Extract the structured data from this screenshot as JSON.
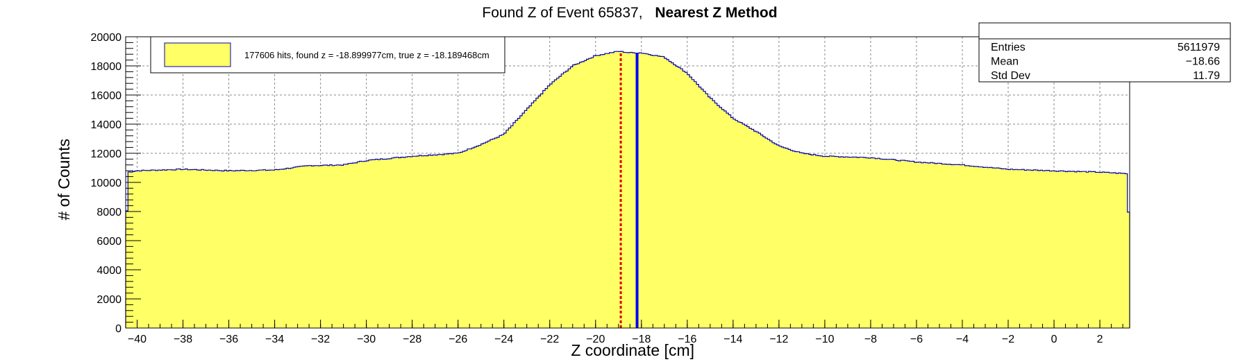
{
  "chart_data": {
    "type": "histogram",
    "title_normal": "Found Z of Event 65837,",
    "title_bold": "Nearest Z Method",
    "xlabel": "Z coordinate [cm]",
    "ylabel": "# of Counts",
    "xlim": [
      -40.5,
      3.3
    ],
    "ylim": [
      0,
      20000
    ],
    "xticks": [
      -40,
      -38,
      -36,
      -34,
      -32,
      -30,
      -28,
      -26,
      -24,
      -22,
      -20,
      -18,
      -16,
      -14,
      -12,
      -10,
      -8,
      -6,
      -4,
      -2,
      0,
      2
    ],
    "yticks": [
      0,
      2000,
      4000,
      6000,
      8000,
      10000,
      12000,
      14000,
      16000,
      18000,
      20000
    ],
    "grid": true,
    "fill_color": "#ffff66",
    "line_color": "#0000aa",
    "histogram_profile": [
      [
        -40.5,
        5400
      ],
      [
        -40.4,
        10700
      ],
      [
        -40.0,
        10800
      ],
      [
        -38.0,
        10900
      ],
      [
        -36.0,
        10800
      ],
      [
        -34.0,
        10850
      ],
      [
        -32.5,
        11150
      ],
      [
        -31.0,
        11200
      ],
      [
        -30.0,
        11500
      ],
      [
        -28.0,
        11800
      ],
      [
        -26.0,
        12000
      ],
      [
        -25.0,
        12600
      ],
      [
        -24.0,
        13300
      ],
      [
        -23.0,
        15000
      ],
      [
        -22.0,
        16700
      ],
      [
        -21.0,
        18000
      ],
      [
        -20.0,
        18700
      ],
      [
        -19.0,
        19000
      ],
      [
        -18.5,
        18900
      ],
      [
        -18.0,
        18900
      ],
      [
        -17.0,
        18600
      ],
      [
        -16.0,
        17500
      ],
      [
        -15.0,
        15800
      ],
      [
        -14.0,
        14400
      ],
      [
        -13.0,
        13500
      ],
      [
        -12.0,
        12500
      ],
      [
        -11.0,
        12000
      ],
      [
        -10.0,
        11800
      ],
      [
        -8.0,
        11700
      ],
      [
        -6.0,
        11400
      ],
      [
        -4.0,
        11200
      ],
      [
        -2.0,
        10900
      ],
      [
        0.0,
        10800
      ],
      [
        2.0,
        10700
      ],
      [
        3.2,
        10600
      ],
      [
        3.3,
        5300
      ]
    ],
    "found_z": -18.899977,
    "true_z": -18.189468,
    "found_line_color": "#dd0000",
    "true_line_color": "#0000ff",
    "legend": {
      "label": "177606 hits, found z = -18.899977cm, true z = -18.189468cm",
      "placement": "top-left"
    },
    "stats": {
      "rows": [
        {
          "label": "Entries",
          "value": "5611979"
        },
        {
          "label": "Mean",
          "value": "−18.66"
        },
        {
          "label": "Std Dev",
          "value": "11.79"
        }
      ]
    }
  }
}
